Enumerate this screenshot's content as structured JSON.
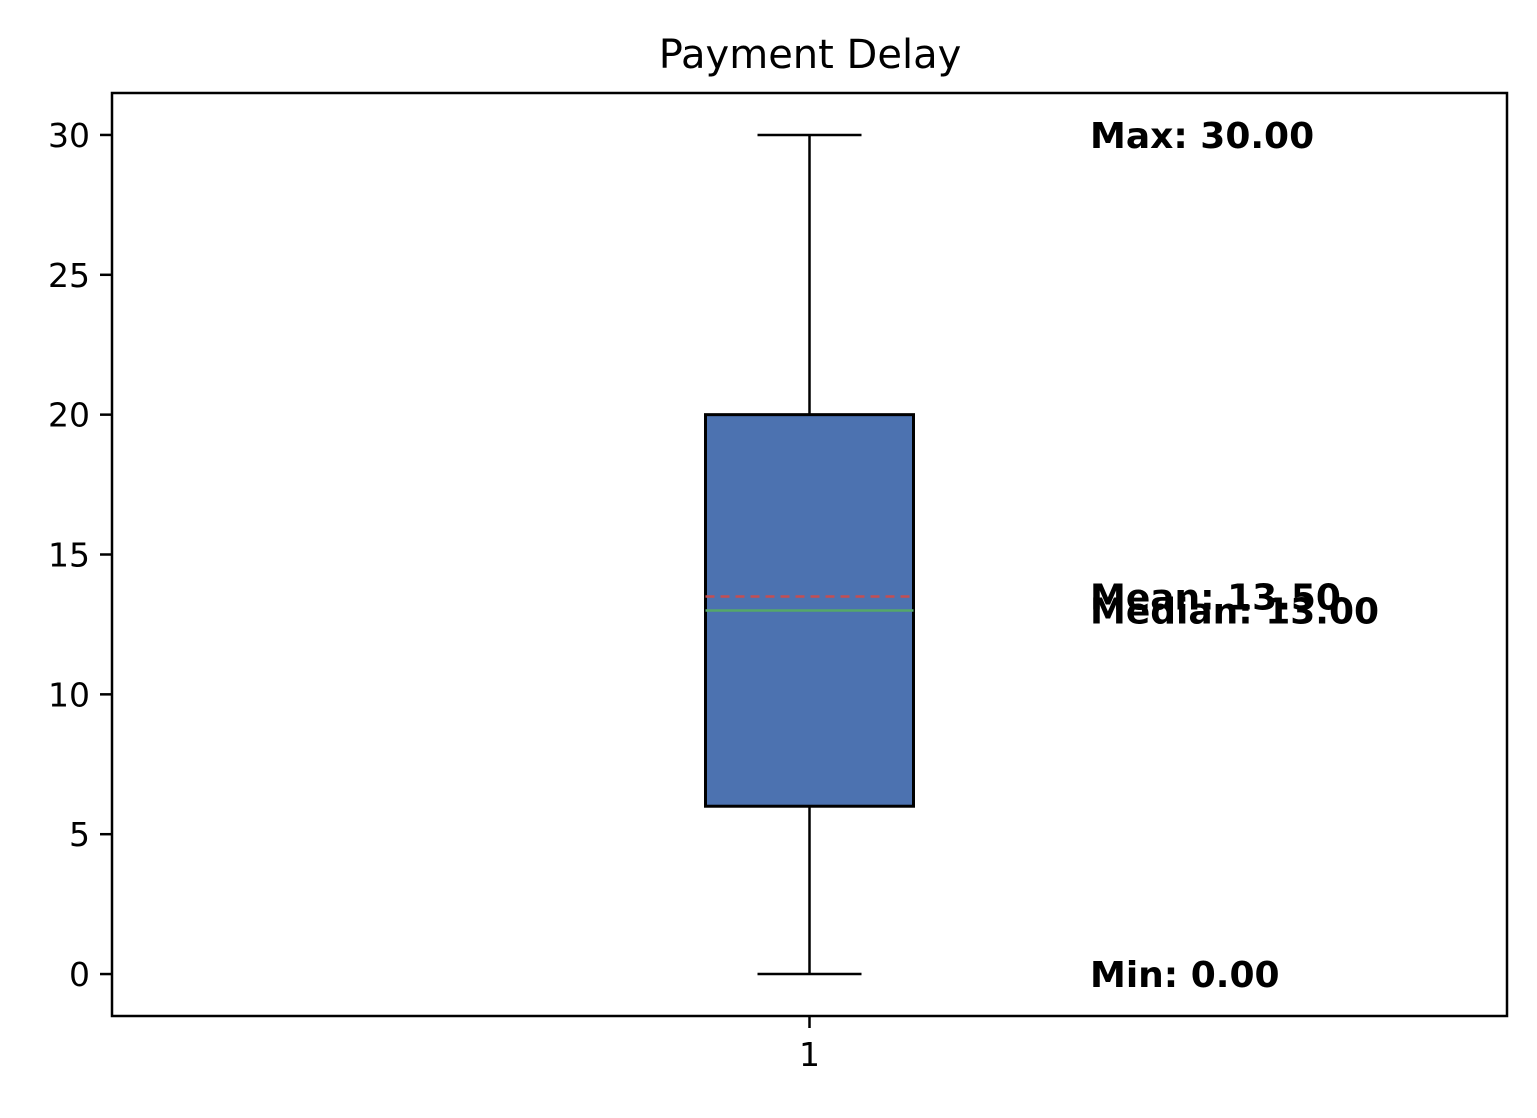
{
  "chart_data": {
    "type": "box",
    "title": "Payment Delay",
    "xlabel": "",
    "ylabel": "",
    "categories": [
      "1"
    ],
    "ylim": [
      -1.5,
      31.5
    ],
    "yticks": [
      0,
      5,
      10,
      15,
      20,
      25,
      30
    ],
    "ytick_labels": [
      "0",
      "5",
      "10",
      "15",
      "20",
      "25",
      "30"
    ],
    "box": {
      "min": 0,
      "q1": 6,
      "median": 13,
      "mean": 13.5,
      "q3": 20,
      "max": 30
    },
    "annotations": [
      {
        "text": "Max: 30.00",
        "value": 30
      },
      {
        "text": "Median: 13.00",
        "value": 13
      },
      {
        "text": "Mean: 13.50",
        "value": 13.5
      },
      {
        "text": "Min: 0.00",
        "value": 0
      }
    ],
    "colors": {
      "box_fill": "#4c72b0",
      "median_line": "#55a868",
      "mean_line": "#c44e52",
      "frame": "#000000"
    },
    "grid": false
  }
}
